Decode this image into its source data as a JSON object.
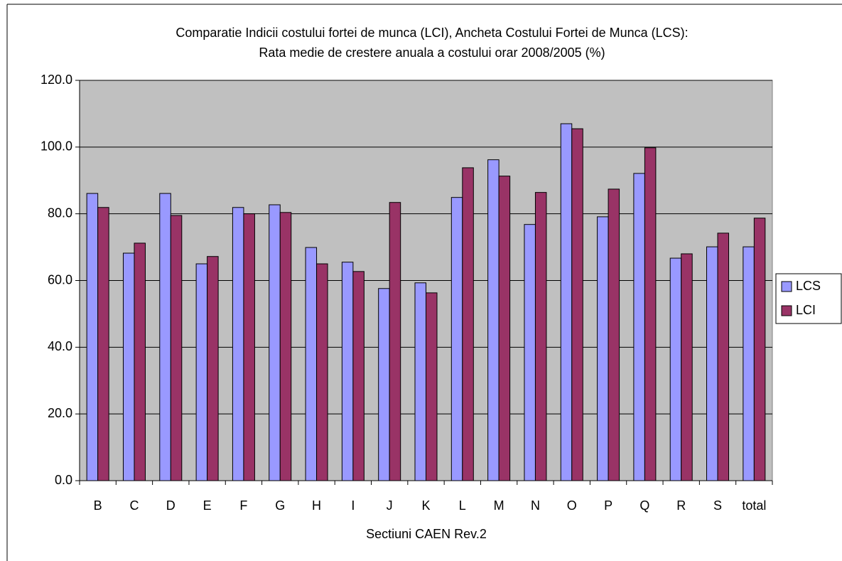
{
  "chart_data": {
    "type": "bar",
    "title": [
      "Comparatie Indicii costului fortei de munca (LCI), Ancheta Costului Fortei de Munca (LCS):",
      "Rata medie de crestere anuala a costului orar 2008/2005 (%)"
    ],
    "x_label": "Sectiuni CAEN Rev.2",
    "categories": [
      "B",
      "C",
      "D",
      "E",
      "F",
      "G",
      "H",
      "I",
      "J",
      "K",
      "L",
      "M",
      "N",
      "O",
      "P",
      "Q",
      "R",
      "S",
      "total"
    ],
    "series": [
      {
        "name": "LCS",
        "color": "#9999ff",
        "values": [
          86.1,
          68.2,
          86.1,
          65.0,
          81.9,
          82.7,
          69.9,
          65.5,
          57.6,
          59.3,
          84.9,
          96.2,
          76.8,
          107.0,
          79.1,
          92.1,
          66.7,
          70.1,
          70.1
        ]
      },
      {
        "name": "LCI",
        "color": "#993366",
        "values": [
          81.9,
          71.2,
          79.5,
          67.2,
          80.0,
          80.4,
          65.0,
          62.7,
          83.4,
          56.3,
          93.8,
          91.3,
          86.4,
          105.5,
          87.4,
          99.8,
          68.0,
          74.2,
          78.7
        ]
      }
    ],
    "ylim": [
      0,
      120
    ],
    "yticks": [
      {
        "value": 0,
        "label": "0.0"
      },
      {
        "value": 20,
        "label": "20.0"
      },
      {
        "value": 40,
        "label": "40.0"
      },
      {
        "value": 60,
        "label": "60.0"
      },
      {
        "value": 80,
        "label": "80.0"
      },
      {
        "value": 100,
        "label": "100.0"
      },
      {
        "value": 120,
        "label": "120.0"
      }
    ],
    "grid": true,
    "plot_background": "#c0c0c0",
    "legend": "right"
  }
}
